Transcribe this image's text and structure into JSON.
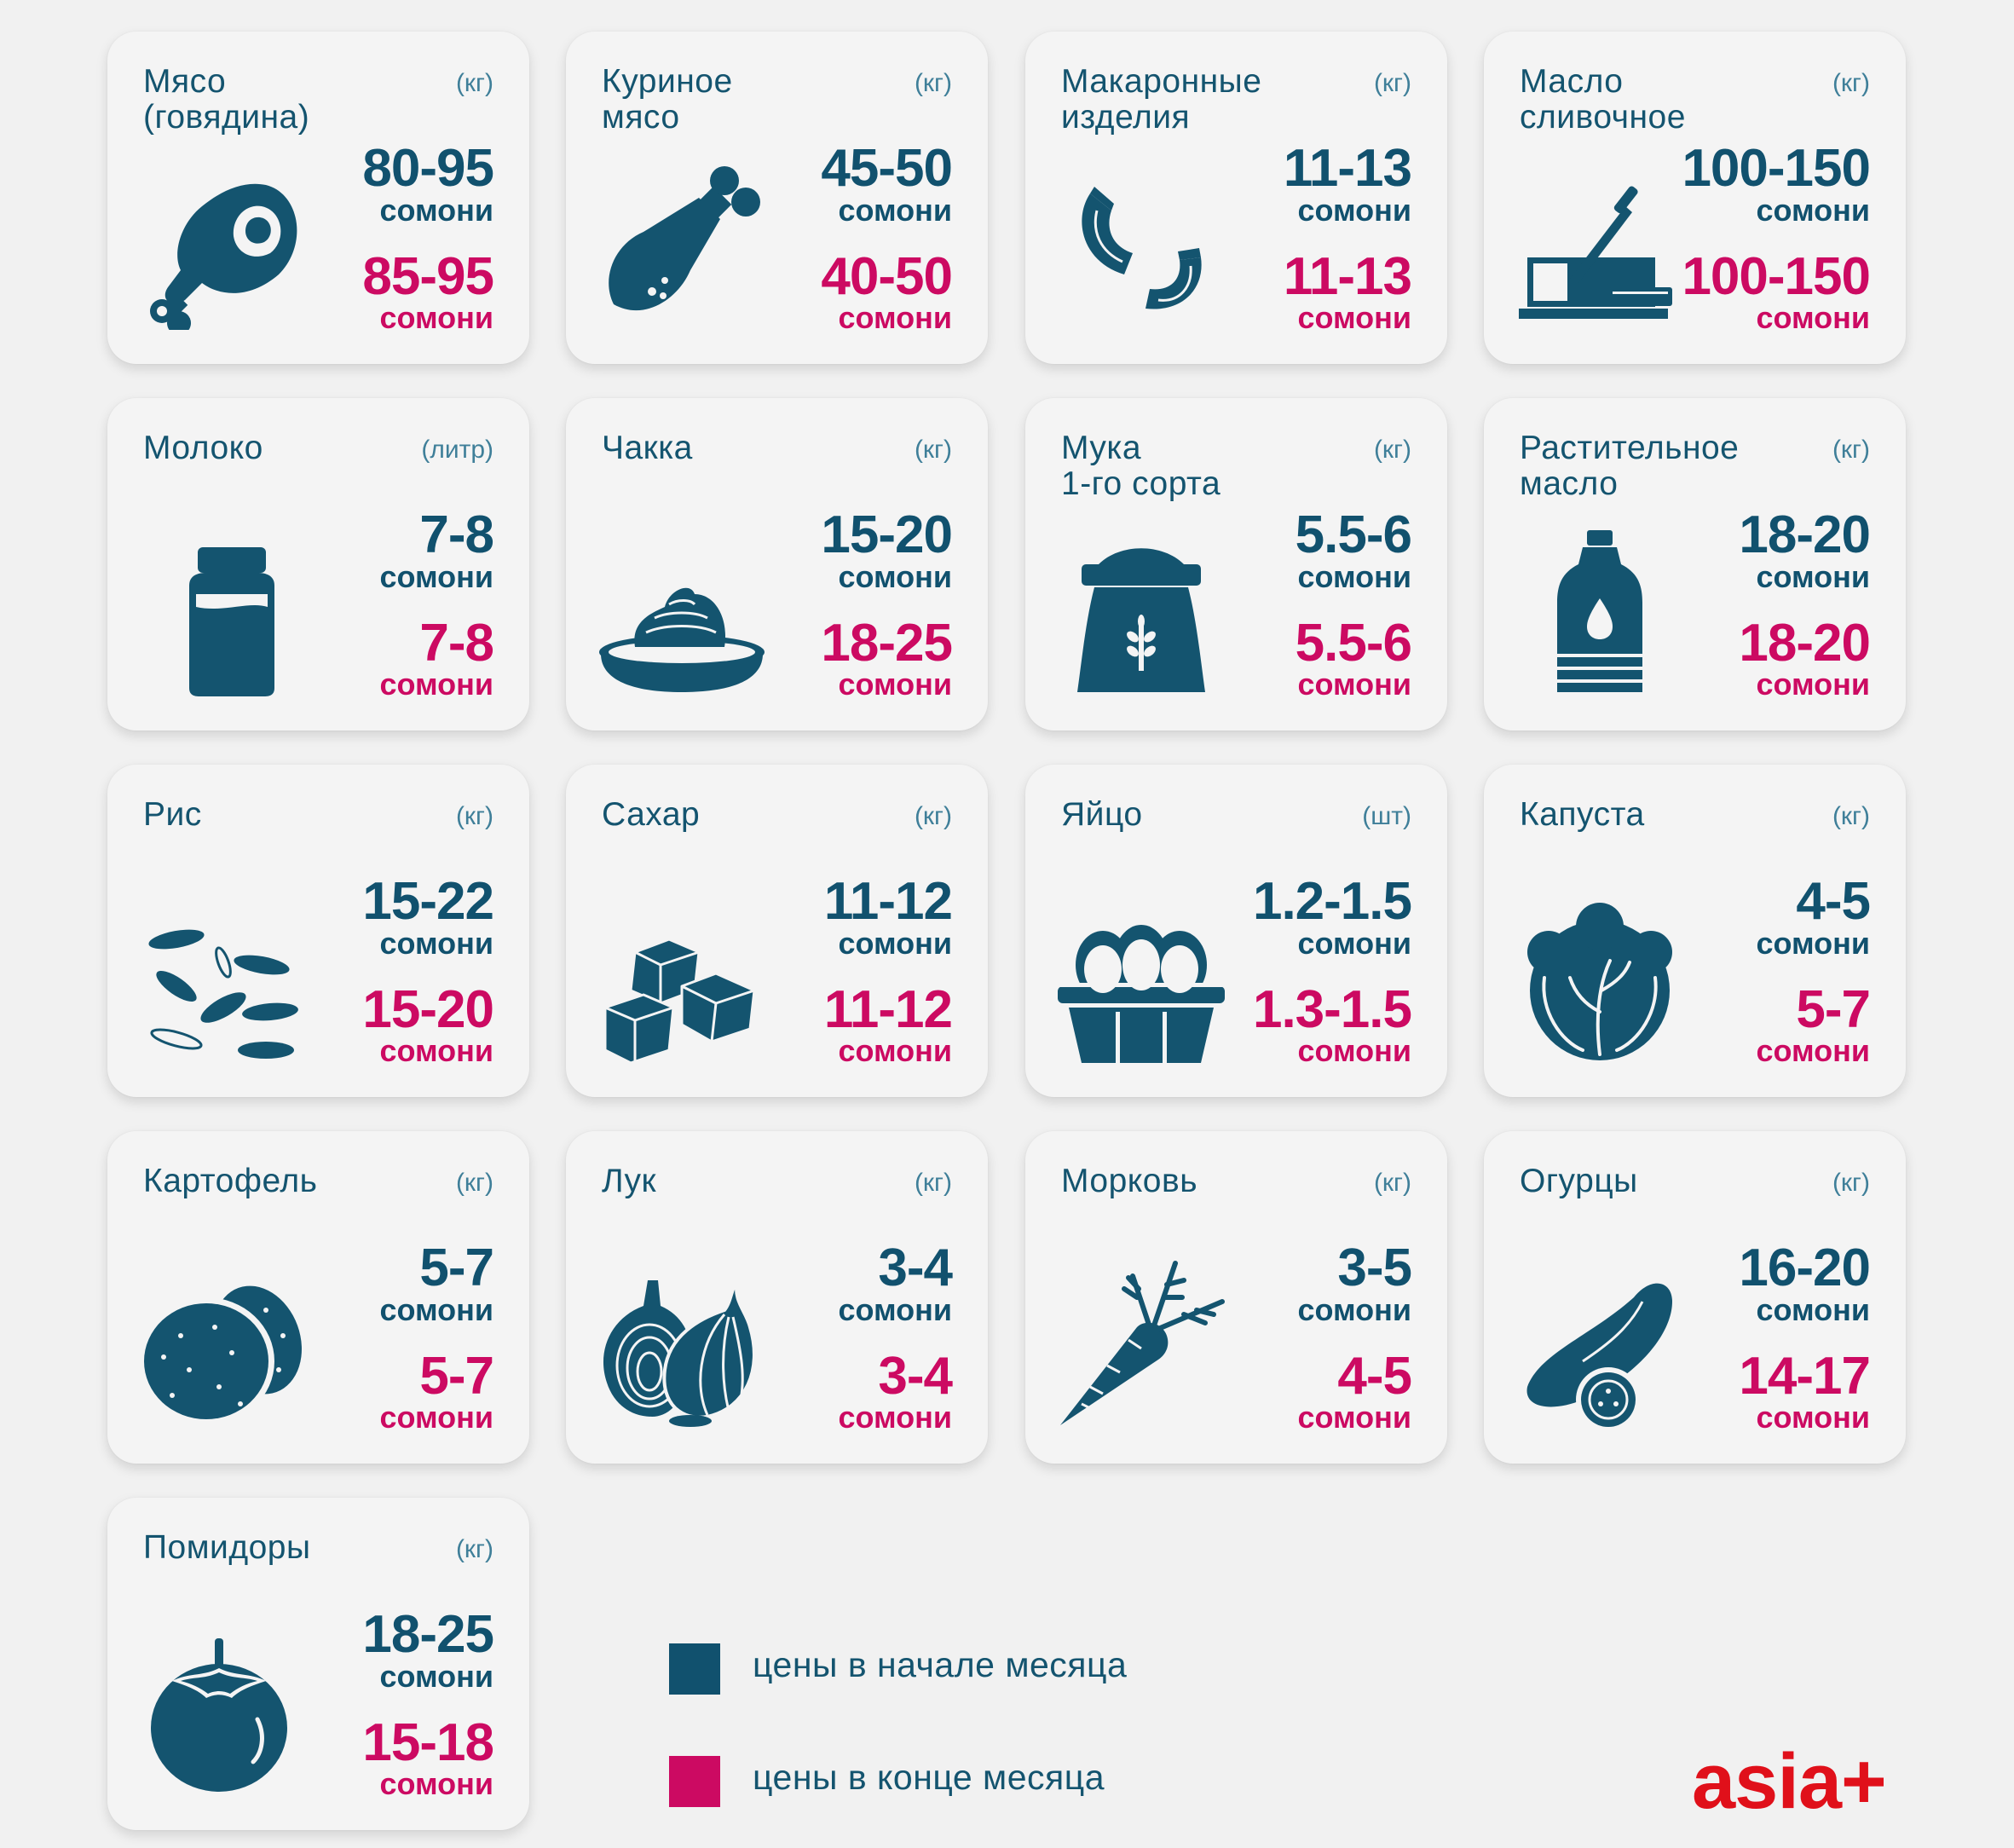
{
  "legend": {
    "start": {
      "label": "цены в начале месяца",
      "color": "#11516e"
    },
    "end": {
      "label": "цены в конце месяца",
      "color": "#cc0a62"
    }
  },
  "logo": "asia+",
  "items": [
    {
      "name": "Мясо\n(говядина)",
      "unit": "(кг)",
      "price_start": "80-95",
      "price_end": "85-95",
      "currency": "сомони",
      "icon": "meat-leg-icon"
    },
    {
      "name": "Куриное\nмясо",
      "unit": "(кг)",
      "price_start": "45-50",
      "price_end": "40-50",
      "currency": "сомони",
      "icon": "chicken-leg-icon"
    },
    {
      "name": "Макаронные\nизделия",
      "unit": "(кг)",
      "price_start": "11-13",
      "price_end": "11-13",
      "currency": "сомони",
      "icon": "macaroni-icon"
    },
    {
      "name": "Масло\nсливочное",
      "unit": "(кг)",
      "price_start": "100-150",
      "price_end": "100-150",
      "currency": "сомони",
      "icon": "butter-icon"
    },
    {
      "name": "Молоко",
      "unit": "(литр)",
      "price_start": "7-8",
      "price_end": "7-8",
      "currency": "сомони",
      "icon": "milk-bottle-icon"
    },
    {
      "name": "Чакка",
      "unit": "(кг)",
      "price_start": "15-20",
      "price_end": "18-25",
      "currency": "сомони",
      "icon": "cream-bowl-icon"
    },
    {
      "name": "Мука\n1-го сорта",
      "unit": "(кг)",
      "price_start": "5.5-6",
      "price_end": "5.5-6",
      "currency": "сомони",
      "icon": "flour-sack-icon"
    },
    {
      "name": "Растительное\nмасло",
      "unit": "(кг)",
      "price_start": "18-20",
      "price_end": "18-20",
      "currency": "сомони",
      "icon": "oil-bottle-icon"
    },
    {
      "name": "Рис",
      "unit": "(кг)",
      "price_start": "15-22",
      "price_end": "15-20",
      "currency": "сомони",
      "icon": "rice-icon"
    },
    {
      "name": "Сахар",
      "unit": "(кг)",
      "price_start": "11-12",
      "price_end": "11-12",
      "currency": "сомони",
      "icon": "sugar-cubes-icon"
    },
    {
      "name": "Яйцо",
      "unit": "(шт)",
      "price_start": "1.2-1.5",
      "price_end": "1.3-1.5",
      "currency": "сомони",
      "icon": "eggs-icon"
    },
    {
      "name": "Капуста",
      "unit": "(кг)",
      "price_start": "4-5",
      "price_end": "5-7",
      "currency": "сомони",
      "icon": "cabbage-icon"
    },
    {
      "name": "Картофель",
      "unit": "(кг)",
      "price_start": "5-7",
      "price_end": "5-7",
      "currency": "сомони",
      "icon": "potato-icon"
    },
    {
      "name": "Лук",
      "unit": "(кг)",
      "price_start": "3-4",
      "price_end": "3-4",
      "currency": "сомони",
      "icon": "onion-icon"
    },
    {
      "name": "Морковь",
      "unit": "(кг)",
      "price_start": "3-5",
      "price_end": "4-5",
      "currency": "сомони",
      "icon": "carrot-icon"
    },
    {
      "name": "Огурцы",
      "unit": "(кг)",
      "price_start": "16-20",
      "price_end": "14-17",
      "currency": "сомони",
      "icon": "cucumber-icon"
    },
    {
      "name": "Помидоры",
      "unit": "(кг)",
      "price_start": "18-25",
      "price_end": "15-18",
      "currency": "сомони",
      "icon": "tomato-icon"
    }
  ]
}
